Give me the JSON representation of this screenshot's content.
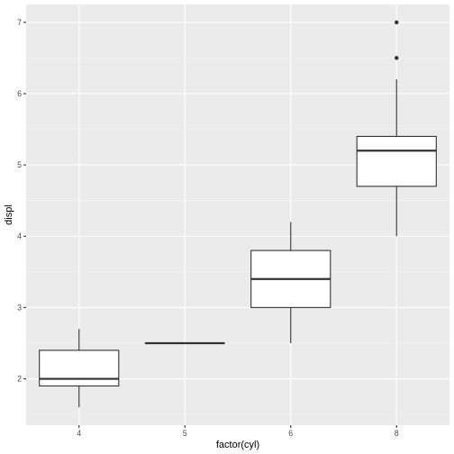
{
  "chart_data": {
    "type": "boxplot",
    "xlabel": "factor(cyl)",
    "ylabel": "displ",
    "categories": [
      "4",
      "5",
      "6",
      "8"
    ],
    "ylim": [
      1.35,
      7.25
    ],
    "yticks": [
      2,
      3,
      4,
      5,
      6,
      7
    ],
    "grid": true,
    "boxes": [
      {
        "category": "4",
        "whisker_low": 1.6,
        "q1": 1.9,
        "median": 2.0,
        "q3": 2.4,
        "whisker_high": 2.7,
        "outliers": []
      },
      {
        "category": "5",
        "whisker_low": 2.5,
        "q1": 2.5,
        "median": 2.5,
        "q3": 2.5,
        "whisker_high": 2.5,
        "outliers": []
      },
      {
        "category": "6",
        "whisker_low": 2.5,
        "q1": 3.0,
        "median": 3.4,
        "q3": 3.8,
        "whisker_high": 4.2,
        "outliers": []
      },
      {
        "category": "8",
        "whisker_low": 4.0,
        "q1": 4.7,
        "median": 5.2,
        "q3": 5.4,
        "whisker_high": 6.2,
        "outliers": [
          6.5,
          7.0
        ]
      }
    ]
  },
  "colors": {
    "panel_background": "#ebebeb",
    "grid_major": "#ffffff",
    "grid_minor": "#f5f5f5",
    "box_fill": "#ffffff",
    "box_stroke": "#333333",
    "tick_text": "#4d4d4d",
    "axis_title": "#000000"
  }
}
